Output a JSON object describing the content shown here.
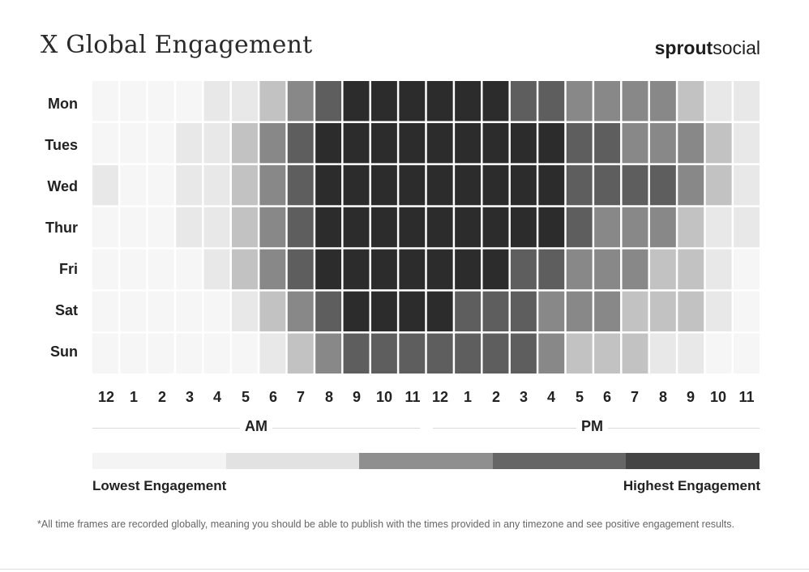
{
  "title": "X Global Engagement",
  "brand": {
    "bold": "sprout",
    "light": "social"
  },
  "chart_data": {
    "type": "heatmap",
    "title": "X Global Engagement",
    "y_categories": [
      "Mon",
      "Tues",
      "Wed",
      "Thur",
      "Fri",
      "Sat",
      "Sun"
    ],
    "x_categories": [
      "12",
      "1",
      "2",
      "3",
      "4",
      "5",
      "6",
      "7",
      "8",
      "9",
      "10",
      "11",
      "12",
      "1",
      "2",
      "3",
      "4",
      "5",
      "6",
      "7",
      "8",
      "9",
      "10",
      "11"
    ],
    "x_groups": [
      "AM",
      "PM"
    ],
    "scale": "engagement level 0 (lowest) to 5 (highest)",
    "values": [
      [
        0,
        0,
        0,
        0,
        1,
        1,
        2,
        3,
        4,
        5,
        5,
        5,
        5,
        5,
        5,
        4,
        4,
        3,
        3,
        3,
        3,
        2,
        1,
        1
      ],
      [
        0,
        0,
        0,
        1,
        1,
        2,
        3,
        4,
        5,
        5,
        5,
        5,
        5,
        5,
        5,
        5,
        5,
        4,
        4,
        3,
        3,
        3,
        2,
        1
      ],
      [
        1,
        0,
        0,
        1,
        1,
        2,
        3,
        4,
        5,
        5,
        5,
        5,
        5,
        5,
        5,
        5,
        5,
        4,
        4,
        4,
        4,
        3,
        2,
        1
      ],
      [
        0,
        0,
        0,
        1,
        1,
        2,
        3,
        4,
        5,
        5,
        5,
        5,
        5,
        5,
        5,
        5,
        5,
        4,
        3,
        3,
        3,
        2,
        1,
        1
      ],
      [
        0,
        0,
        0,
        0,
        1,
        2,
        3,
        4,
        5,
        5,
        5,
        5,
        5,
        5,
        5,
        4,
        4,
        3,
        3,
        3,
        2,
        2,
        1,
        0
      ],
      [
        0,
        0,
        0,
        0,
        0,
        1,
        2,
        3,
        4,
        5,
        5,
        5,
        5,
        4,
        4,
        4,
        3,
        3,
        3,
        2,
        2,
        2,
        1,
        0
      ],
      [
        0,
        0,
        0,
        0,
        0,
        0,
        1,
        2,
        3,
        4,
        4,
        4,
        4,
        4,
        4,
        4,
        3,
        2,
        2,
        2,
        1,
        1,
        0,
        0
      ]
    ],
    "colors": [
      "#f6f6f6",
      "#e8e8e8",
      "#c2c2c2",
      "#888888",
      "#5e5e5e",
      "#2c2c2c"
    ],
    "legend": {
      "colors": [
        "#f4f4f4",
        "#e2e2e2",
        "#8f8f8f",
        "#666666",
        "#444444"
      ],
      "low_label": "Lowest Engagement",
      "high_label": "Highest Engagement"
    }
  },
  "footnote": "*All time frames are recorded globally, meaning you should be able to publish with the times provided in any timezone and see positive engagement results."
}
